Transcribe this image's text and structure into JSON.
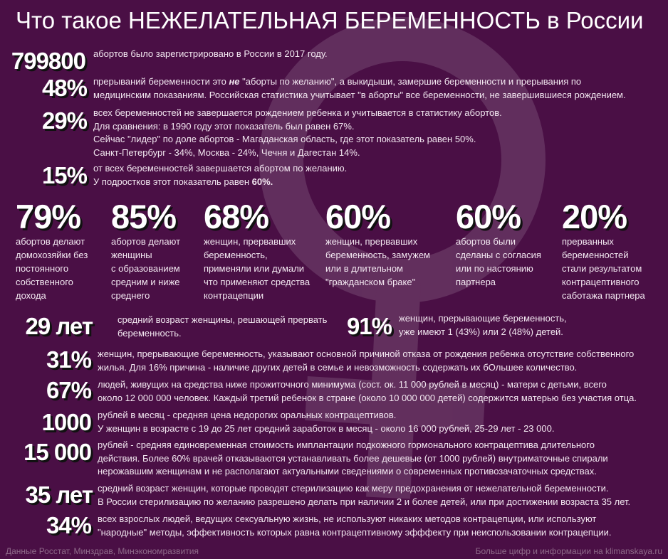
{
  "title": "Что такое НЕЖЕЛАТЕЛЬНАЯ БЕРЕМЕННОСТЬ в России",
  "top_rows": [
    {
      "number": "799800",
      "lines": [
        "абортов было зарегистрировано в России в 2017 году."
      ]
    },
    {
      "number": "48%",
      "lines": [
        [
          "прерываний беременности это ",
          "не",
          " \"аборты по желанию\", а выкидыши, замершие беременности и прерывания по"
        ],
        "медицинским показаниям. Российская статистика учитывает \"в аборты\" все беременности, не завершившиеся рождением."
      ]
    },
    {
      "number": "29%",
      "lines": [
        "всех беременностей не завершается рождением ребенка и учитывается в статистику абортов.",
        "Для сравнения: в 1990 году этот показатель был равен 67%.",
        "Сейчас \"лидер\" по доле абортов - Магаданская область, где этот показатель равен 50%.",
        "Санкт-Петербург - 34%, Москва - 24%, Чечня и Дагестан 14%."
      ]
    },
    {
      "number": "15%",
      "lines": [
        "от всех беременностей завершается абортом по желанию.",
        [
          "У подростков этот показатель равен ",
          "60%."
        ]
      ]
    }
  ],
  "columns": [
    {
      "number": "79%",
      "lines": [
        "абортов делают",
        "домохозяйки без",
        "постоянного",
        "собственного",
        "дохода"
      ]
    },
    {
      "number": "85%",
      "lines": [
        "абортов делают",
        "женщины",
        "с образованием",
        "средним и ниже",
        "среднего"
      ]
    },
    {
      "number": "68%",
      "lines": [
        "женщин, прервавших",
        "беременность,",
        "применяли или думали",
        "что применяют средства",
        "контрацепции"
      ]
    },
    {
      "number": "60%",
      "lines": [
        "женщин, прервавших",
        "беременность, замужем",
        "или в длительном",
        "\"гражданском браке\""
      ]
    },
    {
      "number": "60%",
      "lines": [
        "абортов были",
        "сделаны с согласия",
        "или по настоянию",
        "партнера"
      ]
    },
    {
      "number": "20%",
      "lines": [
        "прерванных",
        "беременностей",
        "стали результатом",
        "контрацептивного",
        "саботажа партнера"
      ]
    }
  ],
  "pair": [
    {
      "number": "29 лет",
      "lines": [
        "средний возраст женщины, решающей прервать",
        "беременность."
      ]
    },
    {
      "number": "91%",
      "lines": [
        "женщин, прерывающие беременность,",
        "уже имеют 1 (43%) или 2 (48%) детей."
      ]
    }
  ],
  "bottom_rows": [
    {
      "number": "31%",
      "lines": [
        "женщин, прерывающие беременность, указывают основной причиной отказа от рождения ребенка отсутствие собственного",
        "жилья. Для 16% причина - наличие других детей в семье и невозможность содержать их бОльшее количество."
      ]
    },
    {
      "number": "67%",
      "lines": [
        "людей, живущих на средства ниже прожиточного минимума (сост. ок. 11 000 рублей в месяц) - матери с детьми, всего",
        "около 12 000 000 человек. Каждый третий ребенок в стране (около 10 000 000 детей) содержится матерью без участия отца."
      ]
    },
    {
      "number": "1000",
      "lines": [
        "рублей в месяц - средняя цена недорогих оральных контрацептивов.",
        "У женщин в возрасте с 19 до 25 лет средний заработок в месяц - около 16 000 рублей, 25-29 лет - 23 000."
      ]
    },
    {
      "number": "15 000",
      "lines": [
        "рублей - средняя единовременная стоимость имплантации подкожного гормонального контрацептива длительного",
        "действия. Более 60% врачей отказываются устанавливать более дешевые (от 1000 рублей) внутриматочные спирали",
        "нерожавшим женщинам и не располагают актуальными сведениями о современных противозачаточных средствах."
      ]
    },
    {
      "number": "35 лет",
      "lines": [
        "средний возраст женщин, которые проводят стерилизацию как меру предохранения от нежелательной беременности.",
        "В России стерилизацию по желанию разрешено делать при наличии 2 и более детей, или при достижении возраста 35 лет."
      ]
    },
    {
      "number": "34%",
      "lines": [
        "всех взрослых людей, ведущих сексуальную жизнь, не используют никаких методов контрацепции, или используют",
        "\"народные\" методы, эффективность которых равна контрацептивному эфффекту при неиспользовании контрацепции."
      ]
    }
  ],
  "footer": {
    "source": "Данные Росстат, Минздрав, Минэкономразвития",
    "link": "Больше цифр и информации на klimanskaya.ru"
  }
}
